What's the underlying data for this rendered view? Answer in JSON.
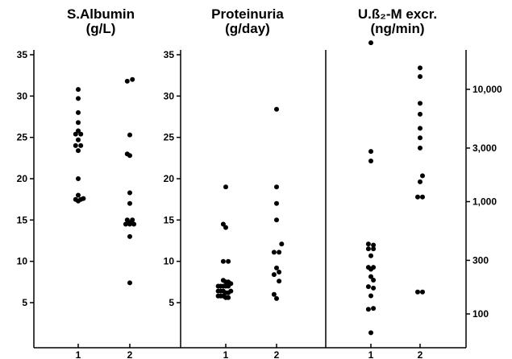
{
  "chart_data": [
    {
      "type": "scatter",
      "title": "S.Albumin",
      "title_line2": "(g/L)",
      "x_categories": [
        "1",
        "2"
      ],
      "y_ticks": [
        5,
        10,
        15,
        20,
        25,
        30,
        35
      ],
      "y_tick_labels": [
        "5",
        "10",
        "15",
        "20",
        "25",
        "30",
        "35"
      ],
      "ylim": [
        0,
        35
      ],
      "y_scale": "linear",
      "tick_side": "left",
      "grid": false,
      "series": [
        {
          "group": "1",
          "x": [
            1.0,
            1.0,
            1.0,
            1.0,
            1.0,
            0.95,
            1.05,
            1.0,
            0.95,
            1.05,
            1.0,
            1.0,
            1.0,
            0.95,
            1.05,
            1.0,
            1.1
          ],
          "y": [
            30.8,
            29.7,
            28.0,
            26.8,
            25.8,
            25.4,
            25.4,
            24.7,
            24.0,
            24.0,
            23.4,
            20.0,
            18.0,
            17.5,
            17.5,
            17.3,
            17.6
          ]
        },
        {
          "group": "2",
          "x": [
            1.95,
            2.05,
            2.0,
            1.95,
            2.0,
            2.0,
            2.0,
            1.95,
            2.05,
            2.0,
            1.92,
            2.0,
            2.08,
            2.0,
            2.0
          ],
          "y": [
            31.8,
            32.0,
            25.3,
            23.0,
            22.8,
            18.3,
            17.0,
            15.0,
            15.0,
            14.7,
            14.5,
            14.5,
            14.5,
            13.0,
            7.4
          ]
        }
      ]
    },
    {
      "type": "scatter",
      "title": "Proteinuria",
      "title_line2": "(g/day)",
      "x_categories": [
        "1",
        "2"
      ],
      "y_ticks": [
        5,
        10,
        15,
        20,
        25,
        30,
        35
      ],
      "y_tick_labels": [
        "5",
        "10",
        "15",
        "20",
        "25",
        "30",
        "35"
      ],
      "ylim": [
        0,
        35
      ],
      "y_scale": "linear",
      "tick_side": "left",
      "grid": false,
      "series": [
        {
          "group": "1",
          "x": [
            1.0,
            0.95,
            1.0,
            0.95,
            1.05,
            0.95,
            1.0,
            1.05,
            0.85,
            0.9,
            0.95,
            1.0,
            1.05,
            1.1,
            0.85,
            0.9,
            0.95,
            1.0,
            1.05,
            1.1,
            0.85,
            0.9,
            0.95,
            1.0,
            1.05
          ],
          "y": [
            19.0,
            14.5,
            14.1,
            10.0,
            10.0,
            7.7,
            7.5,
            7.5,
            7.0,
            7.0,
            7.0,
            7.0,
            7.0,
            7.3,
            6.4,
            6.4,
            6.4,
            6.2,
            6.2,
            6.4,
            5.8,
            5.8,
            5.8,
            5.6,
            5.6
          ]
        },
        {
          "group": "2",
          "x": [
            2.0,
            2.0,
            2.0,
            2.0,
            2.1,
            1.95,
            2.05,
            2.0,
            2.05,
            1.95,
            2.05,
            1.95,
            2.0
          ],
          "y": [
            28.4,
            19.0,
            17.0,
            15.0,
            12.1,
            11.1,
            11.1,
            9.2,
            8.7,
            8.4,
            7.6,
            6.0,
            5.5
          ]
        }
      ]
    },
    {
      "type": "scatter",
      "title": "U.ß₂-M excr.",
      "title_line2": "(ng/min)",
      "x_categories": [
        "1",
        "2"
      ],
      "y_ticks": [
        100,
        300,
        1000,
        3000,
        10000
      ],
      "y_tick_labels": [
        "100",
        "300",
        "1,000",
        "3,000",
        "10,000"
      ],
      "ylim": [
        60,
        30000
      ],
      "y_scale": "log",
      "tick_side": "right",
      "grid": false,
      "series": [
        {
          "group": "1",
          "x": [
            1.0,
            1.0,
            1.0,
            0.95,
            1.05,
            0.95,
            1.05,
            1.0,
            0.95,
            1.05,
            1.0,
            1.0,
            1.05,
            0.95,
            1.05,
            1.0,
            0.95,
            1.05,
            1.0
          ],
          "y": [
            26000,
            2800,
            2300,
            420,
            410,
            380,
            380,
            330,
            260,
            260,
            250,
            215,
            200,
            175,
            170,
            145,
            110,
            112,
            68
          ]
        },
        {
          "group": "2",
          "x": [
            2.0,
            2.0,
            2.0,
            2.0,
            2.0,
            2.0,
            2.0,
            2.05,
            2.0,
            1.95,
            2.05,
            1.95,
            2.05
          ],
          "y": [
            15500,
            13000,
            7500,
            6000,
            4500,
            3700,
            3000,
            1700,
            1500,
            1100,
            1100,
            157,
            157
          ]
        }
      ]
    }
  ]
}
